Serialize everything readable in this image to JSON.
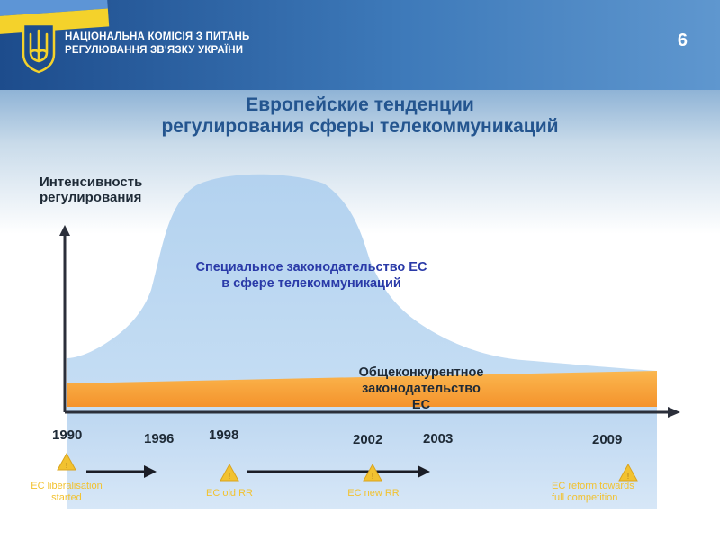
{
  "header": {
    "org_line1": "НАЦІОНАЛЬНА КОМІСІЯ З ПИТАНЬ",
    "org_line2": "РЕГУЛЮВАННЯ ЗВ'ЯЗКУ УКРАЇНИ",
    "page_number": "6"
  },
  "title": {
    "line1": "Европейские тенденции",
    "line2": "регулирования сферы телекоммуникаций"
  },
  "y_axis_label": {
    "line1": "Интенсивность",
    "line2": "регулирования"
  },
  "areas": {
    "special": {
      "line1": "Специальное законодательство ЕС",
      "line2": "в сфере телекоммуникаций"
    },
    "general": {
      "line1": "Общеконкурентное",
      "line2": "законодательство",
      "line3": "ЕС"
    }
  },
  "years": [
    "1990",
    "1996",
    "1998",
    "2002",
    "2003",
    "2009"
  ],
  "events": {
    "liberalisation": {
      "line1": "EC liberalisation",
      "line2": "started"
    },
    "old_rr": "EC old RR",
    "new_rr": "EC new RR",
    "reform": {
      "line1": "EC reform towards",
      "line2": "full competition"
    }
  },
  "colors": {
    "header_blue": "#2f64a6",
    "title_blue": "#24558f",
    "special_area": "#bfd9f2",
    "general_band": "#f7a13a",
    "special_text": "#2a3aa8",
    "event_text": "#f2c230",
    "marker": "#f2c230"
  }
}
